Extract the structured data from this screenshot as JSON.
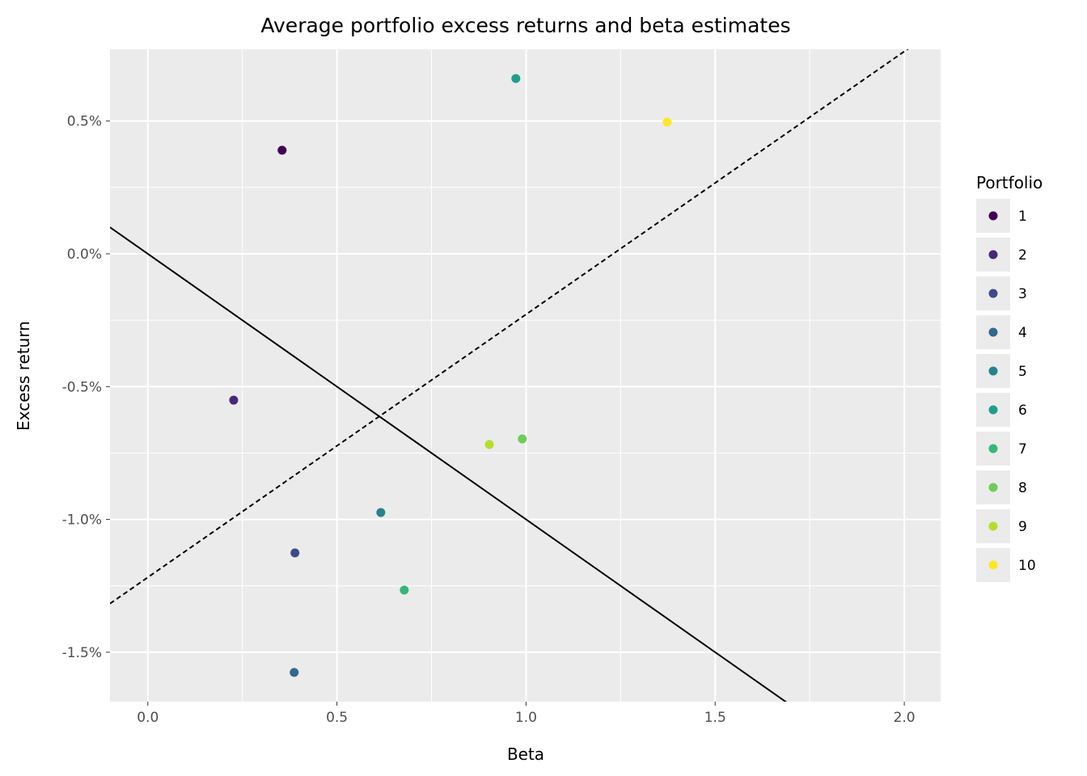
{
  "chart_data": {
    "type": "scatter",
    "title": "Average portfolio excess returns and beta estimates",
    "xlabel": "Beta",
    "ylabel": "Excess return",
    "xlim": [
      -0.1,
      2.096
    ],
    "ylim": [
      -1.686,
      0.77
    ],
    "y_unit": "%",
    "grid": true,
    "x_ticks": [
      0.0,
      0.5,
      1.0,
      1.5,
      2.0
    ],
    "x_tick_labels": [
      "0.0",
      "0.5",
      "1.0",
      "1.5",
      "2.0"
    ],
    "y_ticks": [
      0.5,
      0.0,
      -0.5,
      -1.0,
      -1.5
    ],
    "y_tick_labels": [
      "0.5%",
      "0.0%",
      "-0.5%",
      "-1.0%",
      "-1.5%"
    ],
    "legend": {
      "title": "Portfolio",
      "position": "right"
    },
    "series": [
      {
        "name": "1",
        "color": "#440154",
        "x": 0.355,
        "y": 0.39
      },
      {
        "name": "2",
        "color": "#482878",
        "x": 0.227,
        "y": -0.551
      },
      {
        "name": "3",
        "color": "#3E4A89",
        "x": 0.389,
        "y": -1.126
      },
      {
        "name": "4",
        "color": "#31688E",
        "x": 0.387,
        "y": -1.576
      },
      {
        "name": "5",
        "color": "#26828E",
        "x": 0.616,
        "y": -0.974
      },
      {
        "name": "6",
        "color": "#1F9E89",
        "x": 0.973,
        "y": 0.66
      },
      {
        "name": "7",
        "color": "#35B779",
        "x": 0.678,
        "y": -1.266
      },
      {
        "name": "8",
        "color": "#6DCD59",
        "x": 0.99,
        "y": -0.697
      },
      {
        "name": "9",
        "color": "#B4DE2C",
        "x": 0.903,
        "y": -0.718
      },
      {
        "name": "10",
        "color": "#FDE725",
        "x": 1.373,
        "y": 0.496
      }
    ],
    "lines": [
      {
        "style": "solid",
        "intercept": 0.0,
        "slope": -1.0
      },
      {
        "style": "dashed",
        "intercept": -1.218,
        "slope": 0.99
      }
    ]
  }
}
